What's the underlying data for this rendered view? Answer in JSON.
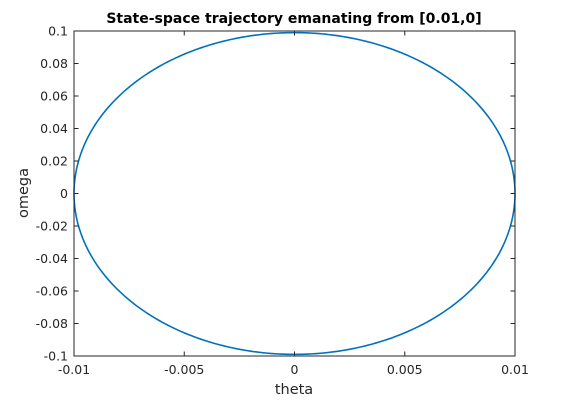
{
  "chart_data": {
    "type": "line",
    "title": "State-space trajectory emanating from [0.01,0]",
    "xlabel": "theta",
    "ylabel": "omega",
    "xlim": [
      -0.01,
      0.01
    ],
    "ylim": [
      -0.1,
      0.1
    ],
    "xticks": [
      -0.01,
      -0.005,
      0,
      0.005,
      0.01
    ],
    "xtick_labels": [
      "-0.01",
      "-0.005",
      "0",
      "0.005",
      "0.01"
    ],
    "yticks": [
      -0.1,
      -0.08,
      -0.06,
      -0.04,
      -0.02,
      0,
      0.02,
      0.04,
      0.06,
      0.08,
      0.1
    ],
    "ytick_labels": [
      "-0.1",
      "-0.08",
      "-0.06",
      "-0.04",
      "-0.02",
      "0",
      "0.02",
      "0.04",
      "0.06",
      "0.08",
      "0.1"
    ],
    "grid": false,
    "box": true,
    "series": [
      {
        "color": "#0072bd",
        "shape": "closed-orbit",
        "x_amplitude": 0.01,
        "y_amplitude": 0.099,
        "x": [
          0.01,
          0.009808,
          0.009239,
          0.008315,
          0.007071,
          0.005556,
          0.003827,
          0.001951,
          0,
          -0.001951,
          -0.003827,
          -0.005556,
          -0.007071,
          -0.008315,
          -0.009239,
          -0.009808,
          -0.01,
          -0.009808,
          -0.009239,
          -0.008315,
          -0.007071,
          -0.005556,
          -0.003827,
          -0.001951,
          0,
          0.001951,
          0.003827,
          0.005556,
          0.007071,
          0.008315,
          0.009239,
          0.009808,
          0.01
        ],
        "y": [
          0,
          0.019315,
          0.037886,
          0.055002,
          0.070004,
          0.082317,
          0.091465,
          0.097098,
          0.099,
          0.097098,
          0.091465,
          0.082317,
          0.070004,
          0.055002,
          0.037886,
          0.019315,
          0,
          -0.019315,
          -0.037886,
          -0.055002,
          -0.070004,
          -0.082317,
          -0.091465,
          -0.097098,
          -0.099,
          -0.097098,
          -0.091465,
          -0.082317,
          -0.070004,
          -0.055002,
          -0.037886,
          -0.019315,
          0
        ]
      }
    ]
  },
  "colors": {
    "axis": "#262626",
    "line": "#0072bd",
    "background": "#ffffff"
  }
}
